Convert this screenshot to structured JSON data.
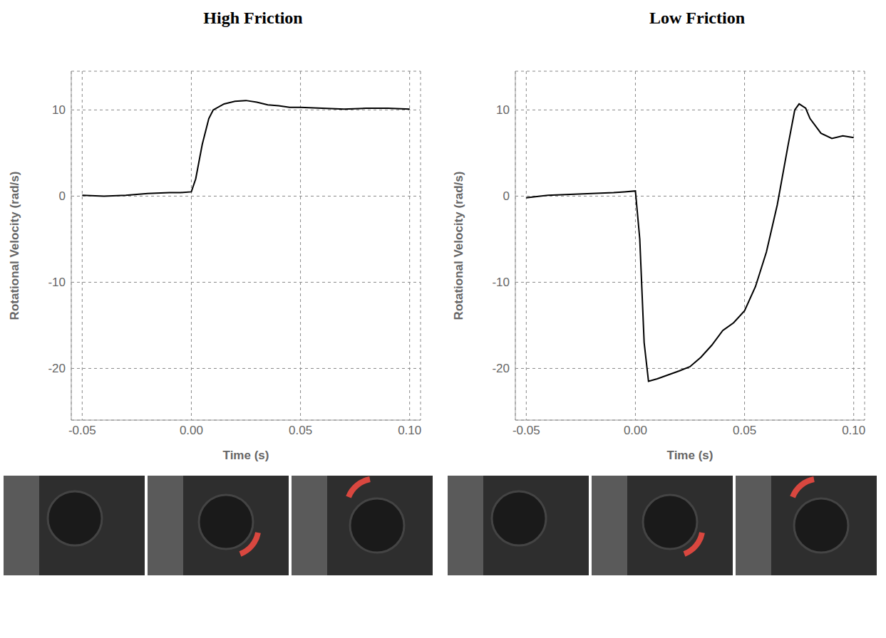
{
  "chart_data": [
    {
      "type": "line",
      "title": "High Friction",
      "xlabel": "Time (s)",
      "ylabel": "Rotational Velocity (rad/s)",
      "x": [
        -0.05,
        -0.04,
        -0.03,
        -0.02,
        -0.01,
        -0.005,
        0,
        0.002,
        0.005,
        0.008,
        0.01,
        0.015,
        0.02,
        0.025,
        0.03,
        0.035,
        0.04,
        0.045,
        0.05,
        0.06,
        0.07,
        0.08,
        0.09,
        0.1
      ],
      "values": [
        0.1,
        0,
        0.1,
        0.3,
        0.4,
        0.4,
        0.5,
        2,
        6,
        9,
        10,
        10.7,
        11,
        11.1,
        10.9,
        10.6,
        10.5,
        10.3,
        10.3,
        10.2,
        10.1,
        10.2,
        10.2,
        10.1
      ],
      "color": "#000000",
      "xlim": [
        -0.055,
        0.105
      ],
      "xticks": [
        -0.05,
        {
          "value": 0,
          "label": "0.00"
        },
        0.05,
        {
          "value": 0.1,
          "label": "0.10"
        }
      ],
      "ylim": [
        -26,
        14.5
      ],
      "yticks": [
        -20,
        -10,
        0,
        10
      ],
      "grid": true
    },
    {
      "type": "line",
      "title": "Low Friction",
      "xlabel": "Time (s)",
      "ylabel": "Rotational Velocity (rad/s)",
      "x": [
        -0.05,
        -0.04,
        -0.03,
        -0.02,
        -0.01,
        -0.005,
        0,
        0.002,
        0.004,
        0.006,
        0.01,
        0.02,
        0.025,
        0.03,
        0.035,
        0.04,
        0.045,
        0.05,
        0.055,
        0.06,
        0.065,
        0.07,
        0.073,
        0.075,
        0.078,
        0.08,
        0.085,
        0.09,
        0.095,
        0.1
      ],
      "values": [
        -0.2,
        0.1,
        0.2,
        0.3,
        0.4,
        0.5,
        0.6,
        -5,
        -17,
        -21.5,
        -21.2,
        -20.3,
        -19.8,
        -18.7,
        -17.3,
        -15.6,
        -14.7,
        -13.3,
        -10.5,
        -6.5,
        -1,
        6,
        10,
        10.7,
        10.2,
        9,
        7.3,
        6.7,
        7,
        6.8
      ],
      "color": "#000000",
      "xlim": [
        -0.055,
        0.105
      ],
      "xticks": [
        -0.05,
        {
          "value": 0,
          "label": "0.00"
        },
        0.05,
        {
          "value": 0.1,
          "label": "0.10"
        }
      ],
      "ylim": [
        -26,
        14.5
      ],
      "yticks": [
        -20,
        -10,
        0,
        10
      ],
      "grid": true
    }
  ]
}
